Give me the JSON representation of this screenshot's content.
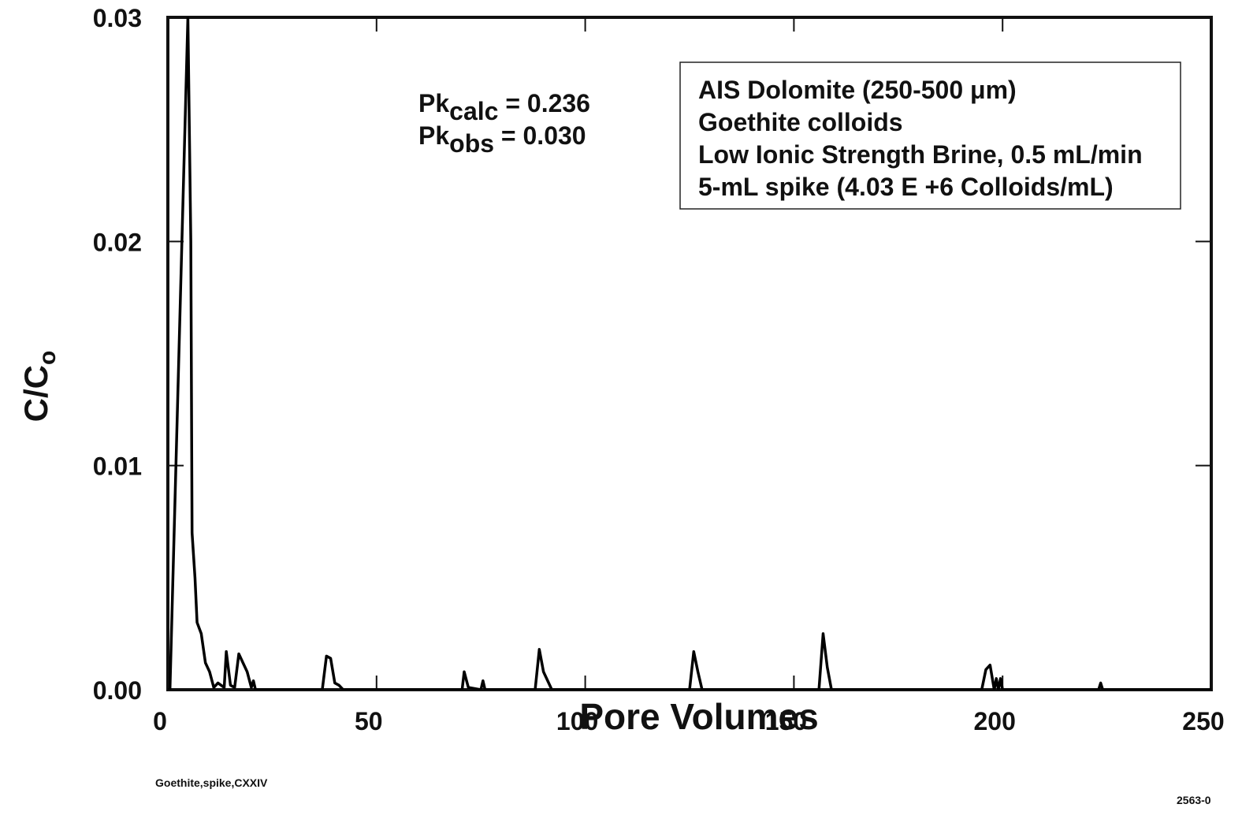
{
  "chart_data": {
    "type": "line",
    "x_label": "Pore Volumes",
    "y_label": {
      "text": "C/C",
      "sub": "o"
    },
    "annotations": [
      {
        "text": "Pk",
        "sub": "calc",
        "rest": " = 0.236"
      },
      {
        "text": "Pk",
        "sub": "obs",
        "rest": " = 0.030"
      }
    ],
    "info_box": [
      "AIS Dolomite (250-500 μm)",
      "Goethite colloids",
      "Low Ionic Strength Brine, 0.5 mL/min",
      "5-mL spike (4.03 E +6 Colloids/mL)"
    ],
    "footnote_left": "Goethite,spike,CXXIV",
    "footnote_right": "2563-0",
    "x": [
      0,
      0.5,
      4.8,
      5.5,
      5.8,
      6.5,
      7,
      8,
      9,
      10,
      11,
      12,
      13.5,
      14,
      15,
      16,
      17,
      18,
      19,
      20,
      20.5,
      21,
      37,
      38,
      39,
      40,
      41,
      42,
      70.5,
      71,
      72,
      75,
      75.5,
      76,
      88,
      89,
      90,
      91,
      92,
      125,
      126,
      127,
      128,
      156,
      157,
      158,
      159,
      195,
      196,
      197,
      198,
      198.5,
      199,
      199.5,
      200,
      223,
      223.5,
      224,
      250
    ],
    "series": [
      {
        "color": "#000000",
        "values": [
          0,
          0,
          0.03,
          0.02,
          0.007,
          0.005,
          0.003,
          0.0025,
          0.0012,
          0.0008,
          0.0001,
          0.0003,
          0.0001,
          0.0017,
          0.0002,
          0.0001,
          0.0016,
          0.0012,
          0.0008,
          0.0001,
          0.0004,
          0,
          0,
          0.0015,
          0.0014,
          0.0003,
          0.0002,
          0,
          0,
          0.0008,
          0.0001,
          0,
          0.0004,
          0,
          0,
          0.0018,
          0.0008,
          0.0004,
          0,
          0,
          0.0017,
          0.0008,
          0,
          0,
          0.0025,
          0.001,
          0,
          0,
          0.0009,
          0.0011,
          0,
          0.0005,
          0,
          0.0005,
          0,
          0,
          0.0003,
          0,
          0
        ]
      }
    ],
    "xlim": [
      0,
      250
    ],
    "xticks": [
      0,
      50,
      100,
      150,
      200,
      250
    ],
    "ylim": [
      0,
      0.03
    ],
    "yticks": [
      {
        "value": 0,
        "label": "0.00"
      },
      0.01,
      0.02,
      0.03
    ],
    "grid": false
  }
}
